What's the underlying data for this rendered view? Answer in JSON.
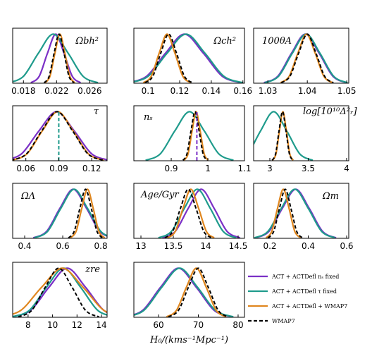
{
  "chart_data": {
    "type": "line",
    "legend": [
      {
        "name": "ACT + ACTDefl   nₛ fixed",
        "color": "#7b30c6"
      },
      {
        "name": "ACT + ACTDefl   τ fixed",
        "color": "#1f9b8c"
      },
      {
        "name": "ACT + ACTDefl + WMAP7",
        "color": "#e0871f"
      },
      {
        "name": "WMAP7",
        "color": "#000000",
        "dashed": true
      }
    ],
    "panels": [
      {
        "title": "Ωbh²",
        "xlim": [
          0.0167,
          0.0281
        ],
        "xticks": [
          0.018,
          0.022,
          0.026
        ],
        "ylim": [
          0,
          1.12
        ],
        "series": [
          {
            "key": 0,
            "x": [
              0.0189,
              0.0199,
              0.0209,
              0.0219,
              0.0229,
              0.0239,
              0.0249
            ],
            "values": [
              0.01,
              0.14,
              0.61,
              1,
              0.61,
              0.14,
              0.01
            ]
          },
          {
            "key": 1,
            "x": [
              0.0162,
              0.018,
              0.0198,
              0.0216,
              0.0234,
              0.0252,
              0.027
            ],
            "values": [
              0.01,
              0.14,
              0.61,
              1,
              0.61,
              0.14,
              0.01
            ]
          },
          {
            "key": 2,
            "x": [
              0.0206,
              0.0212,
              0.0218,
              0.0224,
              0.023,
              0.0236,
              0.0242
            ],
            "values": [
              0.01,
              0.14,
              0.61,
              1,
              0.61,
              0.14,
              0.01
            ]
          },
          {
            "key": 3,
            "x": [
              0.0205,
              0.0211,
              0.0217,
              0.0223,
              0.0229,
              0.0235,
              0.0241
            ],
            "values": [
              0.01,
              0.14,
              0.61,
              1,
              0.61,
              0.14,
              0.01
            ]
          }
        ]
      },
      {
        "title": "Ωch²",
        "xlim": [
          0.091,
          0.161
        ],
        "xticks": [
          0.1,
          0.12,
          0.14,
          0.16
        ],
        "ylim": [
          0,
          1.12
        ],
        "series": [
          {
            "key": 0,
            "x": [
              0.087,
              0.099,
              0.111,
              0.123,
              0.135,
              0.147,
              0.159
            ],
            "values": [
              0.01,
              0.14,
              0.61,
              1,
              0.61,
              0.14,
              0.01
            ]
          },
          {
            "key": 1,
            "x": [
              0.088,
              0.1,
              0.112,
              0.124,
              0.136,
              0.148,
              0.16
            ],
            "values": [
              0.01,
              0.14,
              0.61,
              1,
              0.61,
              0.14,
              0.01
            ]
          },
          {
            "key": 2,
            "x": [
              0.097,
              0.102,
              0.107,
              0.112,
              0.117,
              0.122,
              0.127
            ],
            "values": [
              0.01,
              0.14,
              0.61,
              1,
              0.61,
              0.14,
              0.01
            ]
          },
          {
            "key": 3,
            "x": [
              0.098,
              0.103,
              0.108,
              0.113,
              0.118,
              0.123,
              0.128
            ],
            "values": [
              0.01,
              0.14,
              0.61,
              1,
              0.61,
              0.14,
              0.01
            ]
          }
        ]
      },
      {
        "title": "100θA",
        "xlim": [
          1.0264,
          1.0505
        ],
        "xticks": [
          1.03,
          1.04,
          1.05
        ],
        "ylim": [
          0,
          1.12
        ],
        "series": [
          {
            "key": 0,
            "x": [
              1.029,
              1.0325,
              1.036,
              1.0395,
              1.043,
              1.0465,
              1.05
            ],
            "values": [
              0.01,
              0.14,
              0.61,
              1,
              0.61,
              0.14,
              0.01
            ]
          },
          {
            "key": 1,
            "x": [
              1.0292,
              1.0327,
              1.0362,
              1.0397,
              1.0432,
              1.0467,
              1.0502
            ],
            "values": [
              0.01,
              0.14,
              0.61,
              1,
              0.61,
              0.14,
              0.01
            ]
          },
          {
            "key": 2,
            "x": [
              1.0332,
              1.0354,
              1.0376,
              1.0398,
              1.042,
              1.0442,
              1.0464
            ],
            "values": [
              0.01,
              0.14,
              0.61,
              1,
              0.61,
              0.14,
              0.01
            ]
          },
          {
            "key": 3,
            "x": [
              1.0334,
              1.0356,
              1.0378,
              1.04,
              1.0422,
              1.0444,
              1.0466
            ],
            "values": [
              0.01,
              0.14,
              0.61,
              1,
              0.61,
              0.14,
              0.01
            ]
          }
        ]
      },
      {
        "title": "τ",
        "xlim": [
          0.048,
          0.134
        ],
        "xticks": [
          0.06,
          0.09,
          0.12
        ],
        "ylim": [
          0,
          1.12
        ],
        "vlines": [
          {
            "x": 0.09,
            "key": 1
          }
        ],
        "series": [
          {
            "key": 0,
            "x": [
              0.04,
              0.056,
              0.072,
              0.088,
              0.104,
              0.12,
              0.136
            ],
            "values": [
              0.01,
              0.14,
              0.61,
              1,
              0.61,
              0.14,
              0.01
            ]
          },
          {
            "key": 2,
            "x": [
              0.047,
              0.061,
              0.075,
              0.089,
              0.103,
              0.117,
              0.131
            ],
            "values": [
              0.01,
              0.14,
              0.61,
              1,
              0.61,
              0.14,
              0.01
            ]
          },
          {
            "key": 3,
            "x": [
              0.0465,
              0.0605,
              0.0745,
              0.0885,
              0.1025,
              0.1165,
              0.1305
            ],
            "values": [
              0.01,
              0.14,
              0.61,
              1,
              0.61,
              0.14,
              0.01
            ]
          }
        ]
      },
      {
        "title": "nₛ",
        "xlim": [
          0.798,
          1.1
        ],
        "xticks": [
          0.9,
          1,
          1.1
        ],
        "ylim": [
          0,
          1.12
        ],
        "vlines": [
          {
            "x": 0.97,
            "key": 0
          }
        ],
        "series": [
          {
            "key": 1,
            "x": [
              0.83,
              0.87,
              0.91,
              0.95,
              0.99,
              1.03,
              1.07
            ],
            "values": [
              0.01,
              0.14,
              0.61,
              1,
              0.61,
              0.14,
              0.01
            ]
          },
          {
            "key": 2,
            "x": [
              0.935,
              0.946,
              0.957,
              0.968,
              0.979,
              0.99,
              1.001
            ],
            "values": [
              0.01,
              0.14,
              0.61,
              1,
              0.61,
              0.14,
              0.01
            ]
          },
          {
            "key": 3,
            "x": [
              0.932,
              0.943,
              0.954,
              0.965,
              0.976,
              0.987,
              0.998
            ],
            "values": [
              0.01,
              0.14,
              0.61,
              1,
              0.61,
              0.14,
              0.01
            ]
          }
        ]
      },
      {
        "title": "log[10¹⁰Δ²ᵣ]",
        "xlim": [
          2.789,
          4.028
        ],
        "xticks": [
          3,
          3.5,
          4
        ],
        "ylim": [
          0,
          1.12
        ],
        "series": [
          {
            "key": 1,
            "x": [
              2.54,
              2.71,
              2.88,
              3.05,
              3.22,
              3.39,
              3.56
            ],
            "values": [
              0.01,
              0.14,
              0.61,
              1,
              0.61,
              0.14,
              0.01
            ]
          },
          {
            "key": 2,
            "x": [
              3.035,
              3.08,
              3.125,
              3.17,
              3.215,
              3.26,
              3.305
            ],
            "values": [
              0.01,
              0.14,
              0.61,
              1,
              0.61,
              0.14,
              0.01
            ]
          },
          {
            "key": 3,
            "x": [
              3.03,
              3.075,
              3.12,
              3.165,
              3.21,
              3.255,
              3.3
            ],
            "values": [
              0.01,
              0.14,
              0.61,
              1,
              0.61,
              0.14,
              0.01
            ]
          }
        ]
      },
      {
        "title": "ΩΛ",
        "xlim": [
          0.337,
          0.833
        ],
        "xticks": [
          0.4,
          0.6,
          0.8
        ],
        "ylim": [
          0,
          1.12
        ],
        "series": [
          {
            "key": 0,
            "x": [
              0.445,
              0.515,
              0.585,
              0.655,
              0.725,
              0.795,
              0.865
            ],
            "values": [
              0.01,
              0.14,
              0.61,
              1,
              0.61,
              0.14,
              0.01
            ]
          },
          {
            "key": 1,
            "x": [
              0.45,
              0.52,
              0.59,
              0.66,
              0.73,
              0.8,
              0.87
            ],
            "values": [
              0.01,
              0.14,
              0.61,
              1,
              0.61,
              0.14,
              0.01
            ]
          },
          {
            "key": 2,
            "x": [
              0.64,
              0.67,
              0.7,
              0.73,
              0.76,
              0.79,
              0.82
            ],
            "values": [
              0.01,
              0.14,
              0.61,
              1,
              0.61,
              0.14,
              0.01
            ]
          },
          {
            "key": 3,
            "x": [
              0.63,
              0.66,
              0.69,
              0.72,
              0.75,
              0.78,
              0.81
            ],
            "values": [
              0.01,
              0.14,
              0.61,
              1,
              0.61,
              0.14,
              0.01
            ]
          }
        ]
      },
      {
        "title": "Age/Gyr",
        "xlim": [
          12.891,
          14.598
        ],
        "xticks": [
          13,
          13.5,
          14,
          14.5
        ],
        "ylim": [
          0,
          1.12
        ],
        "series": [
          {
            "key": 0,
            "x": [
              13.33,
              13.53,
              13.73,
              13.93,
              14.13,
              14.33,
              14.53
            ],
            "values": [
              0.01,
              0.14,
              0.61,
              1,
              0.61,
              0.14,
              0.01
            ]
          },
          {
            "key": 1,
            "x": [
              13.27,
              13.47,
              13.67,
              13.87,
              14.07,
              14.27,
              14.47
            ],
            "values": [
              0.01,
              0.14,
              0.61,
              1,
              0.61,
              0.14,
              0.01
            ]
          },
          {
            "key": 2,
            "x": [
              13.41,
              13.53,
              13.65,
              13.77,
              13.89,
              14.01,
              14.13
            ],
            "values": [
              0.01,
              0.14,
              0.61,
              1,
              0.61,
              0.14,
              0.01
            ]
          },
          {
            "key": 3,
            "x": [
              13.37,
              13.49,
              13.61,
              13.73,
              13.85,
              13.97,
              14.09
            ],
            "values": [
              0.01,
              0.14,
              0.61,
              1,
              0.61,
              0.14,
              0.01
            ]
          }
        ]
      },
      {
        "title": "Ωm",
        "xlim": [
          0.1156,
          0.611
        ],
        "xticks": [
          0.2,
          0.4,
          0.6
        ],
        "ylim": [
          0,
          1.12
        ],
        "series": [
          {
            "key": 0,
            "x": [
              0.125,
              0.195,
              0.265,
              0.335,
              0.405,
              0.475,
              0.545
            ],
            "values": [
              0.01,
              0.14,
              0.61,
              1,
              0.61,
              0.14,
              0.01
            ]
          },
          {
            "key": 1,
            "x": [
              0.12,
              0.19,
              0.26,
              0.33,
              0.4,
              0.47,
              0.54
            ],
            "values": [
              0.01,
              0.14,
              0.61,
              1,
              0.61,
              0.14,
              0.01
            ]
          },
          {
            "key": 2,
            "x": [
              0.18,
              0.21,
              0.24,
              0.27,
              0.3,
              0.33,
              0.36
            ],
            "values": [
              0.01,
              0.14,
              0.61,
              1,
              0.61,
              0.14,
              0.01
            ]
          },
          {
            "key": 3,
            "x": [
              0.19,
              0.22,
              0.25,
              0.28,
              0.31,
              0.34,
              0.37
            ],
            "values": [
              0.01,
              0.14,
              0.61,
              1,
              0.61,
              0.14,
              0.01
            ]
          }
        ]
      },
      {
        "title": "zre",
        "xlim": [
          6.74,
          14.46
        ],
        "xticks": [
          8,
          10,
          12,
          14
        ],
        "ylim": [
          0,
          1.12
        ],
        "series": [
          {
            "key": 0,
            "x": [
              6.7,
              8.2,
              9.7,
              11.2,
              12.7,
              14.2,
              15.7
            ],
            "values": [
              0.01,
              0.14,
              0.61,
              1,
              0.61,
              0.14,
              0.01
            ]
          },
          {
            "key": 1,
            "x": [
              6.7,
              8.1,
              9.5,
              10.9,
              12.3,
              13.7,
              15.1
            ],
            "values": [
              0.01,
              0.14,
              0.61,
              1,
              0.61,
              0.14,
              0.01
            ]
          },
          {
            "key": 2,
            "x": [
              5.7,
              7.4,
              9.1,
              10.8,
              12.5,
              14.2,
              15.9
            ],
            "values": [
              0.01,
              0.14,
              0.61,
              1,
              0.61,
              0.14,
              0.01
            ]
          },
          {
            "key": 3,
            "x": [
              7.2,
              8.3,
              9.4,
              10.5,
              11.6,
              12.7,
              13.8
            ],
            "values": [
              0.01,
              0.14,
              0.61,
              1,
              0.61,
              0.14,
              0.01
            ]
          }
        ]
      },
      {
        "xlabel": "H₀/(kms⁻¹Mpc⁻¹)",
        "xlim": [
          53.8,
          81.6
        ],
        "xticks": [
          60,
          70,
          80
        ],
        "ylim": [
          0,
          1.12
        ],
        "series": [
          {
            "key": 0,
            "x": [
              51.5,
              56,
              60.5,
              65,
              69.5,
              74,
              78.5
            ],
            "values": [
              0.01,
              0.14,
              0.61,
              1,
              0.61,
              0.14,
              0.01
            ]
          },
          {
            "key": 1,
            "x": [
              51.8,
              56.3,
              60.8,
              65.3,
              69.8,
              74.3,
              78.8
            ],
            "values": [
              0.01,
              0.14,
              0.61,
              1,
              0.61,
              0.14,
              0.01
            ]
          },
          {
            "key": 2,
            "x": [
              62,
              64.5,
              67,
              69.5,
              72,
              74.5,
              77
            ],
            "values": [
              0.01,
              0.14,
              0.61,
              1,
              0.61,
              0.14,
              0.01
            ]
          },
          {
            "key": 3,
            "x": [
              62.5,
              65,
              67.5,
              70,
              72.5,
              75,
              77.5
            ],
            "values": [
              0.01,
              0.14,
              0.61,
              1,
              0.61,
              0.14,
              0.01
            ]
          }
        ]
      }
    ]
  }
}
